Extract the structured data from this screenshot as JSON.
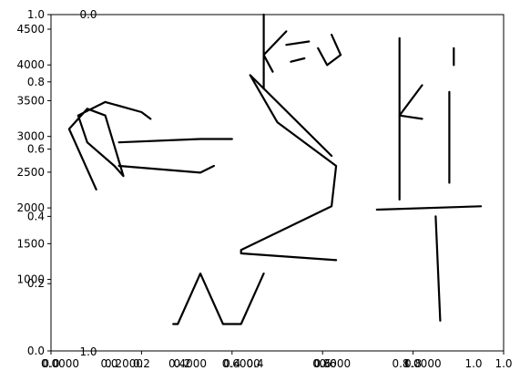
{
  "chart_data": {
    "type": "line",
    "title": "",
    "xlabel": "",
    "ylabel": "",
    "grid": false,
    "main_axes": {
      "x_ticks": [
        "0.0",
        "0.2",
        "0.4",
        "0.6",
        "0.8",
        "1.0"
      ],
      "y_ticks": [
        "0.0",
        "0.2",
        "0.4",
        "0.6",
        "0.8",
        "1.0"
      ]
    },
    "overlaid_axes": [
      {
        "name": "left-numeric-axis",
        "ylim": [
          0,
          4500
        ],
        "y_ticks": [
          "1000",
          "1500",
          "2000",
          "2500",
          "3000",
          "3500",
          "4000",
          "4500"
        ],
        "x_ticks": [
          "0.0000",
          "0.2000",
          "0.4000",
          "0.6000",
          "0.8000",
          "1.0000"
        ]
      },
      {
        "name": "secondary-axis",
        "x_ticks": [
          "0.0",
          "0.2",
          "0.4",
          "0.6",
          "0.8",
          "1.0"
        ],
        "top_label": "0.0",
        "bottom_label": "1.0"
      }
    ],
    "series": [
      {
        "name": "",
        "values": [
          [
            0.22,
            0.69
          ],
          [
            0.2,
            0.71
          ],
          [
            0.12,
            0.74
          ],
          [
            0.06,
            0.7
          ],
          [
            0.08,
            0.62
          ],
          [
            0.14,
            0.55
          ],
          [
            0.16,
            0.52
          ],
          [
            0.12,
            0.7
          ],
          [
            0.08,
            0.72
          ],
          [
            0.04,
            0.66
          ],
          [
            0.1,
            0.48
          ]
        ]
      },
      {
        "name": "",
        "values": [
          [
            0.15,
            0.62
          ],
          [
            0.33,
            0.63
          ],
          [
            0.4,
            0.63
          ]
        ]
      },
      {
        "name": "",
        "values": [
          [
            0.15,
            0.55
          ],
          [
            0.33,
            0.53
          ],
          [
            0.36,
            0.55
          ]
        ]
      },
      {
        "name": "",
        "values": [
          [
            0.62,
            0.58
          ],
          [
            0.44,
            0.82
          ],
          [
            0.5,
            0.68
          ],
          [
            0.63,
            0.55
          ],
          [
            0.62,
            0.43
          ],
          [
            0.42,
            0.3
          ],
          [
            0.42,
            0.29
          ],
          [
            0.63,
            0.27
          ]
        ]
      },
      {
        "name": "",
        "values": [
          [
            0.47,
            0.23
          ],
          [
            0.42,
            0.08
          ],
          [
            0.38,
            0.08
          ],
          [
            0.33,
            0.23
          ],
          [
            0.28,
            0.08
          ],
          [
            0.27,
            0.08
          ]
        ]
      },
      {
        "name": "",
        "values": [
          [
            0.47,
            1.0
          ],
          [
            0.47,
            0.78
          ]
        ]
      },
      {
        "name": "",
        "values": [
          [
            0.47,
            0.88
          ],
          [
            0.52,
            0.95
          ]
        ]
      },
      {
        "name": "",
        "values": [
          [
            0.47,
            0.88
          ],
          [
            0.49,
            0.83
          ]
        ]
      },
      {
        "name": "",
        "values": [
          [
            0.52,
            0.91
          ],
          [
            0.57,
            0.92
          ]
        ]
      },
      {
        "name": "",
        "values": [
          [
            0.53,
            0.86
          ],
          [
            0.56,
            0.87
          ]
        ]
      },
      {
        "name": "",
        "values": [
          [
            0.62,
            0.94
          ],
          [
            0.64,
            0.88
          ],
          [
            0.61,
            0.85
          ],
          [
            0.59,
            0.9
          ]
        ]
      },
      {
        "name": "",
        "values": [
          [
            0.77,
            0.93
          ],
          [
            0.77,
            0.45
          ]
        ]
      },
      {
        "name": "",
        "values": [
          [
            0.77,
            0.7
          ],
          [
            0.82,
            0.79
          ]
        ]
      },
      {
        "name": "",
        "values": [
          [
            0.77,
            0.7
          ],
          [
            0.82,
            0.69
          ]
        ]
      },
      {
        "name": "",
        "values": [
          [
            0.89,
            0.9
          ],
          [
            0.89,
            0.85
          ]
        ]
      },
      {
        "name": "",
        "values": [
          [
            0.88,
            0.77
          ],
          [
            0.88,
            0.5
          ]
        ]
      },
      {
        "name": "",
        "values": [
          [
            0.72,
            0.42
          ],
          [
            0.95,
            0.43
          ]
        ]
      },
      {
        "name": "",
        "values": [
          [
            0.85,
            0.4
          ],
          [
            0.86,
            0.09
          ]
        ]
      }
    ]
  }
}
